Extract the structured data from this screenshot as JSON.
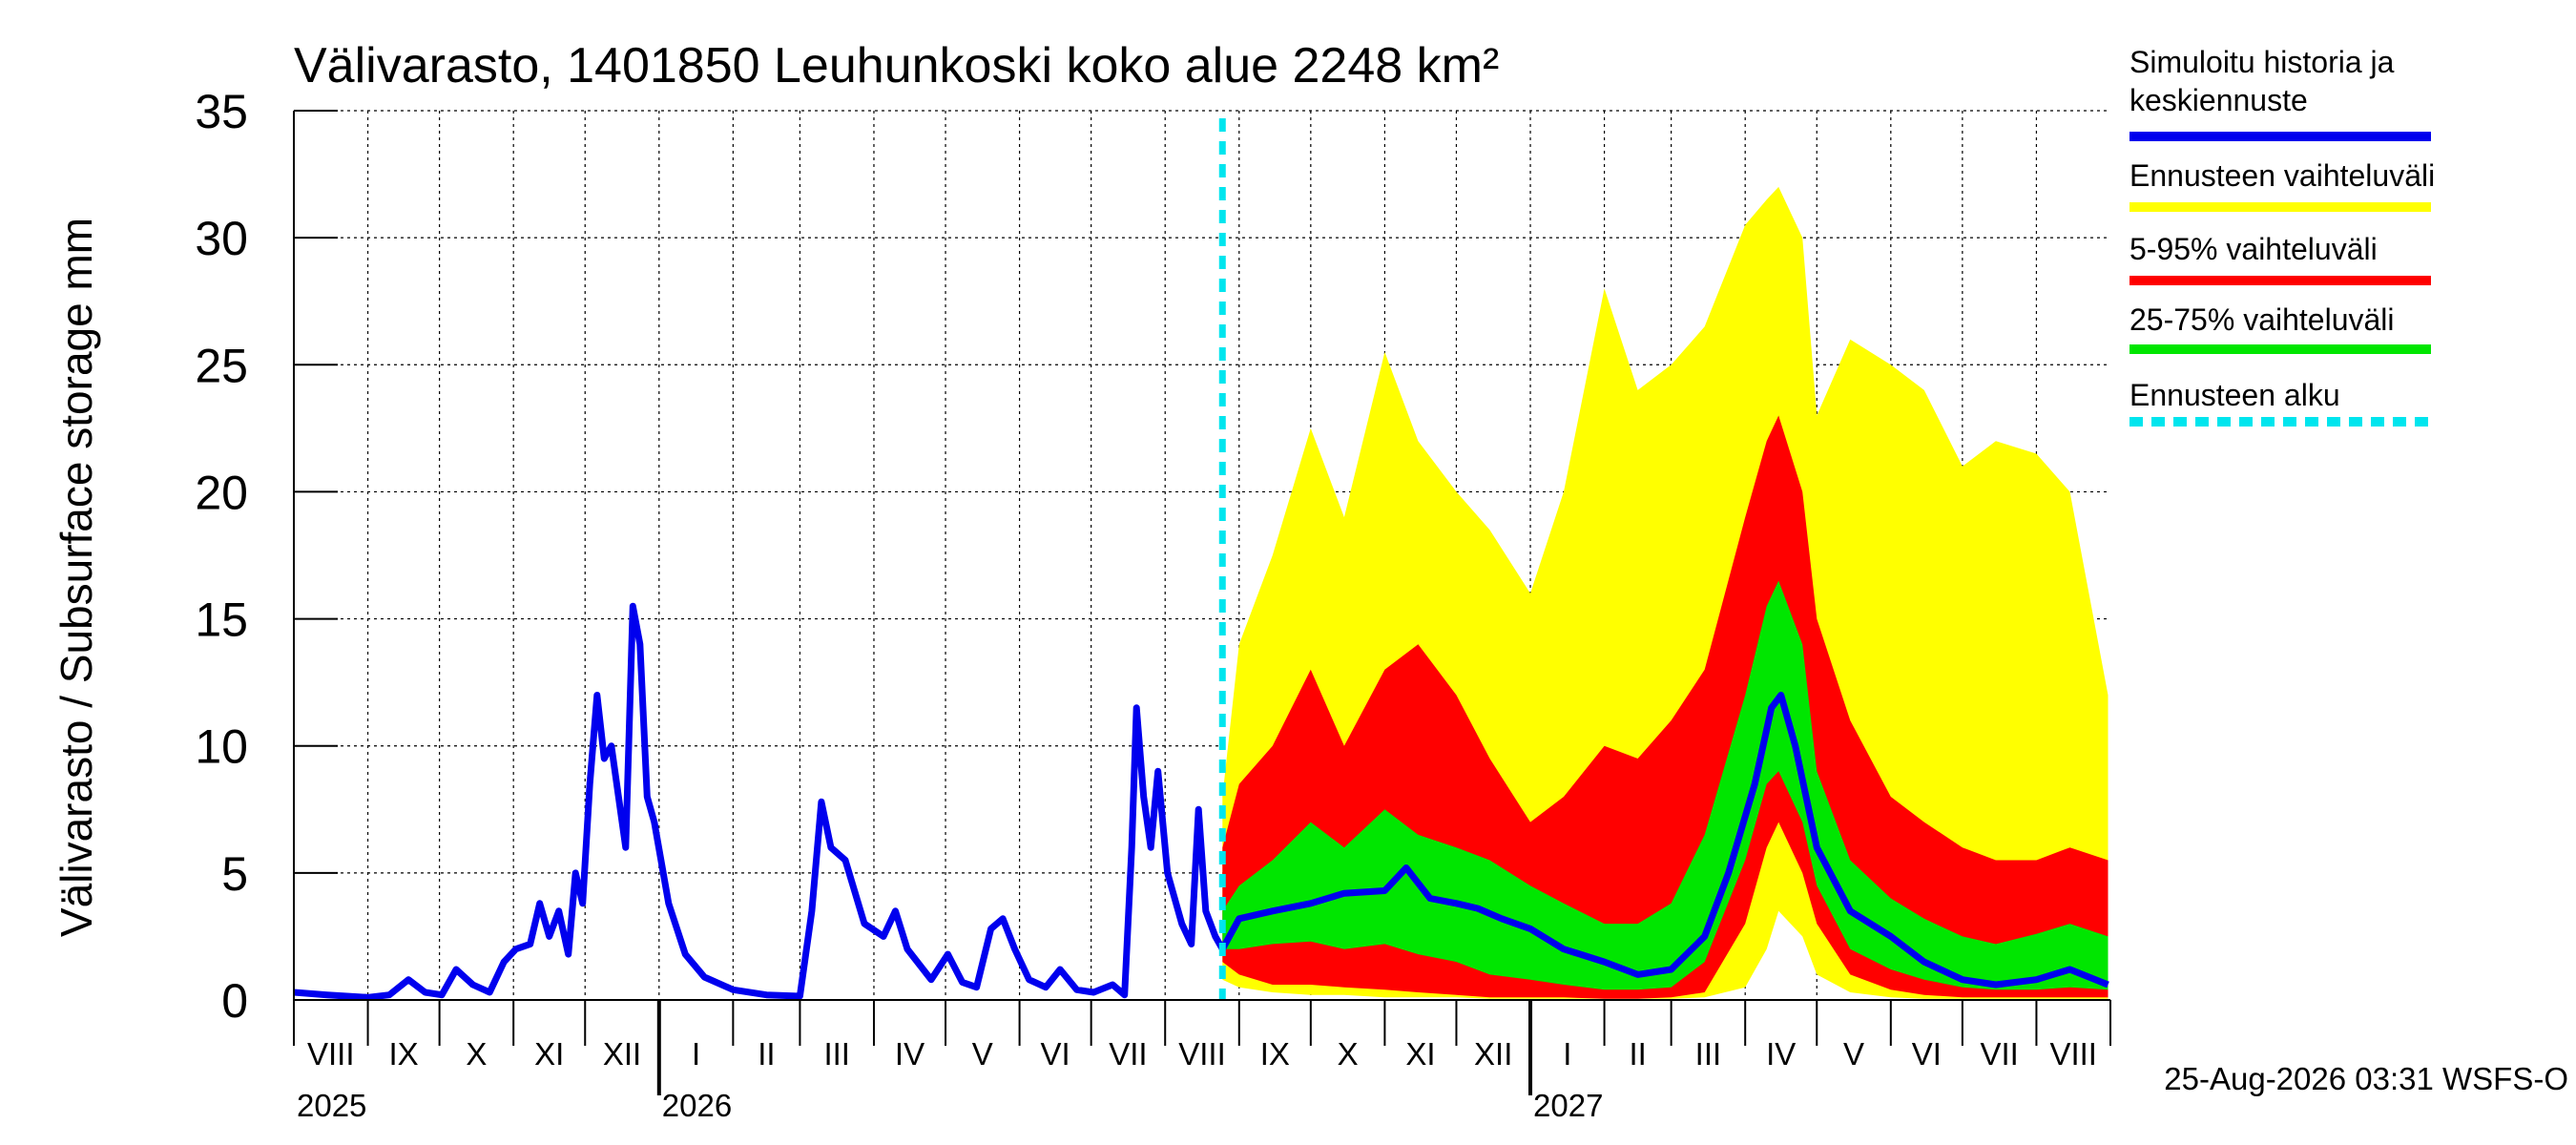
{
  "chart_data": {
    "type": "area",
    "title": "Välivarasto, 1401850 Leuhunkoski koko alue 2248 km²",
    "ylabel": "Välivarasto / Subsurface storage  mm",
    "xlabel": "",
    "ylim": [
      0,
      35
    ],
    "y_ticks": [
      "0",
      "5",
      "10",
      "15",
      "20",
      "25",
      "30",
      "35"
    ],
    "grid": true,
    "legend_position": "right",
    "x_range": [
      "2025-08-01",
      "2027-08-31"
    ],
    "forecast_start": "2026-08-25",
    "month_labels": [
      "VIII",
      "IX",
      "X",
      "XI",
      "XII",
      "I",
      "II",
      "III",
      "IV",
      "V",
      "VI",
      "VII",
      "VIII",
      "IX",
      "X",
      "XI",
      "XII",
      "I",
      "II",
      "III",
      "IV",
      "V",
      "VI",
      "VII",
      "VIII"
    ],
    "year_labels": [
      {
        "label": "2025",
        "date": "2025-08-01"
      },
      {
        "label": "2026",
        "date": "2026-01-01"
      },
      {
        "label": "2027",
        "date": "2027-01-01"
      }
    ],
    "legend": [
      {
        "label": "Simuloitu historia ja\nkeskiennuste",
        "color": "#0000ee",
        "style": "solid"
      },
      {
        "label": "Ennusteen vaihteluväli",
        "color": "#ffff00",
        "style": "solid"
      },
      {
        "label": "5-95% vaihteluväli",
        "color": "#ff0000",
        "style": "solid"
      },
      {
        "label": "25-75% vaihteluväli",
        "color": "#00e600",
        "style": "solid"
      },
      {
        "label": "Ennusteen alku",
        "color": "#00e5ee",
        "style": "dashed"
      }
    ],
    "series": [
      {
        "name": "Simuloitu historia ja keskiennuste",
        "color": "#0000ee",
        "points": [
          [
            "2025-08-01",
            0.3
          ],
          [
            "2025-08-15",
            0.2
          ],
          [
            "2025-09-01",
            0.1
          ],
          [
            "2025-09-10",
            0.2
          ],
          [
            "2025-09-18",
            0.8
          ],
          [
            "2025-09-25",
            0.3
          ],
          [
            "2025-10-02",
            0.2
          ],
          [
            "2025-10-08",
            1.2
          ],
          [
            "2025-10-15",
            0.6
          ],
          [
            "2025-10-22",
            0.3
          ],
          [
            "2025-10-28",
            1.5
          ],
          [
            "2025-11-02",
            2.0
          ],
          [
            "2025-11-08",
            2.2
          ],
          [
            "2025-11-12",
            3.8
          ],
          [
            "2025-11-16",
            2.5
          ],
          [
            "2025-11-20",
            3.5
          ],
          [
            "2025-11-24",
            1.8
          ],
          [
            "2025-11-27",
            5.0
          ],
          [
            "2025-11-30",
            3.8
          ],
          [
            "2025-12-03",
            8.5
          ],
          [
            "2025-12-06",
            12.0
          ],
          [
            "2025-12-09",
            9.5
          ],
          [
            "2025-12-12",
            10.0
          ],
          [
            "2025-12-15",
            8.0
          ],
          [
            "2025-12-18",
            6.0
          ],
          [
            "2025-12-21",
            15.5
          ],
          [
            "2025-12-24",
            14.0
          ],
          [
            "2025-12-27",
            8.0
          ],
          [
            "2025-12-30",
            7.0
          ],
          [
            "2026-01-05",
            3.8
          ],
          [
            "2026-01-12",
            1.8
          ],
          [
            "2026-01-20",
            0.9
          ],
          [
            "2026-02-01",
            0.4
          ],
          [
            "2026-02-15",
            0.2
          ],
          [
            "2026-03-01",
            0.15
          ],
          [
            "2026-03-06",
            3.5
          ],
          [
            "2026-03-10",
            7.8
          ],
          [
            "2026-03-14",
            6.0
          ],
          [
            "2026-03-20",
            5.5
          ],
          [
            "2026-03-28",
            3.0
          ],
          [
            "2026-04-05",
            2.5
          ],
          [
            "2026-04-10",
            3.5
          ],
          [
            "2026-04-15",
            2.0
          ],
          [
            "2026-04-25",
            0.8
          ],
          [
            "2026-05-02",
            1.8
          ],
          [
            "2026-05-08",
            0.7
          ],
          [
            "2026-05-14",
            0.5
          ],
          [
            "2026-05-20",
            2.8
          ],
          [
            "2026-05-25",
            3.2
          ],
          [
            "2026-05-30",
            2.0
          ],
          [
            "2026-06-05",
            0.8
          ],
          [
            "2026-06-12",
            0.5
          ],
          [
            "2026-06-18",
            1.2
          ],
          [
            "2026-06-25",
            0.4
          ],
          [
            "2026-07-02",
            0.3
          ],
          [
            "2026-07-10",
            0.6
          ],
          [
            "2026-07-15",
            0.2
          ],
          [
            "2026-07-18",
            6.0
          ],
          [
            "2026-07-20",
            11.5
          ],
          [
            "2026-07-23",
            8.0
          ],
          [
            "2026-07-26",
            6.0
          ],
          [
            "2026-07-29",
            9.0
          ],
          [
            "2026-08-02",
            5.0
          ],
          [
            "2026-08-08",
            3.0
          ],
          [
            "2026-08-12",
            2.2
          ],
          [
            "2026-08-15",
            7.5
          ],
          [
            "2026-08-18",
            3.5
          ],
          [
            "2026-08-22",
            2.5
          ],
          [
            "2026-08-25",
            2.0
          ],
          [
            "2026-09-01",
            3.2
          ],
          [
            "2026-09-15",
            3.5
          ],
          [
            "2026-10-01",
            3.8
          ],
          [
            "2026-10-15",
            4.2
          ],
          [
            "2026-11-01",
            4.3
          ],
          [
            "2026-11-10",
            5.2
          ],
          [
            "2026-11-20",
            4.0
          ],
          [
            "2026-12-01",
            3.8
          ],
          [
            "2026-12-10",
            3.6
          ],
          [
            "2026-12-20",
            3.2
          ],
          [
            "2027-01-01",
            2.8
          ],
          [
            "2027-01-15",
            2.0
          ],
          [
            "2027-02-01",
            1.5
          ],
          [
            "2027-02-15",
            1.0
          ],
          [
            "2027-03-01",
            1.2
          ],
          [
            "2027-03-15",
            2.5
          ],
          [
            "2027-03-25",
            5.0
          ],
          [
            "2027-04-05",
            8.5
          ],
          [
            "2027-04-12",
            11.5
          ],
          [
            "2027-04-16",
            12.0
          ],
          [
            "2027-04-22",
            10.0
          ],
          [
            "2027-05-01",
            6.0
          ],
          [
            "2027-05-15",
            3.5
          ],
          [
            "2027-06-01",
            2.5
          ],
          [
            "2027-06-15",
            1.5
          ],
          [
            "2027-07-01",
            0.8
          ],
          [
            "2027-07-15",
            0.6
          ],
          [
            "2027-08-01",
            0.8
          ],
          [
            "2027-08-15",
            1.2
          ],
          [
            "2027-08-31",
            0.6
          ]
        ]
      },
      {
        "name": "Ennusteen vaihteluväli",
        "color": "#ffff00",
        "band": [
          [
            "2026-08-25",
            0.8,
            8.0
          ],
          [
            "2026-09-01",
            0.5,
            14.0
          ],
          [
            "2026-09-15",
            0.3,
            17.5
          ],
          [
            "2026-10-01",
            0.2,
            22.5
          ],
          [
            "2026-10-15",
            0.2,
            19.0
          ],
          [
            "2026-11-01",
            0.1,
            25.5
          ],
          [
            "2026-11-15",
            0.1,
            22.0
          ],
          [
            "2026-12-01",
            0.1,
            20.0
          ],
          [
            "2026-12-15",
            0.05,
            18.5
          ],
          [
            "2027-01-01",
            0.05,
            16.0
          ],
          [
            "2027-01-15",
            0.05,
            20.0
          ],
          [
            "2027-02-01",
            0.05,
            28.0
          ],
          [
            "2027-02-15",
            0.05,
            24.0
          ],
          [
            "2027-03-01",
            0.05,
            25.0
          ],
          [
            "2027-03-15",
            0.1,
            26.5
          ],
          [
            "2027-04-01",
            0.5,
            30.5
          ],
          [
            "2027-04-10",
            2.0,
            31.5
          ],
          [
            "2027-04-15",
            3.5,
            32.0
          ],
          [
            "2027-04-25",
            2.5,
            30.0
          ],
          [
            "2027-05-01",
            1.0,
            23.0
          ],
          [
            "2027-05-15",
            0.3,
            26.0
          ],
          [
            "2027-06-01",
            0.1,
            25.0
          ],
          [
            "2027-06-15",
            0.05,
            24.0
          ],
          [
            "2027-07-01",
            0.05,
            21.0
          ],
          [
            "2027-07-15",
            0.05,
            22.0
          ],
          [
            "2027-08-01",
            0.05,
            21.5
          ],
          [
            "2027-08-15",
            0.05,
            20.0
          ],
          [
            "2027-08-31",
            0.05,
            12.0
          ]
        ]
      },
      {
        "name": "5-95% vaihteluväli",
        "color": "#ff0000",
        "band": [
          [
            "2026-08-25",
            1.5,
            6.0
          ],
          [
            "2026-09-01",
            1.0,
            8.5
          ],
          [
            "2026-09-15",
            0.6,
            10.0
          ],
          [
            "2026-10-01",
            0.6,
            13.0
          ],
          [
            "2026-10-15",
            0.5,
            10.0
          ],
          [
            "2026-11-01",
            0.4,
            13.0
          ],
          [
            "2026-11-15",
            0.3,
            14.0
          ],
          [
            "2026-12-01",
            0.2,
            12.0
          ],
          [
            "2026-12-15",
            0.1,
            9.5
          ],
          [
            "2027-01-01",
            0.1,
            7.0
          ],
          [
            "2027-01-15",
            0.1,
            8.0
          ],
          [
            "2027-02-01",
            0.05,
            10.0
          ],
          [
            "2027-02-15",
            0.05,
            9.5
          ],
          [
            "2027-03-01",
            0.1,
            11.0
          ],
          [
            "2027-03-15",
            0.3,
            13.0
          ],
          [
            "2027-04-01",
            3.0,
            19.0
          ],
          [
            "2027-04-10",
            6.0,
            22.0
          ],
          [
            "2027-04-15",
            7.0,
            23.0
          ],
          [
            "2027-04-25",
            5.0,
            20.0
          ],
          [
            "2027-05-01",
            3.0,
            15.0
          ],
          [
            "2027-05-15",
            1.0,
            11.0
          ],
          [
            "2027-06-01",
            0.4,
            8.0
          ],
          [
            "2027-06-15",
            0.2,
            7.0
          ],
          [
            "2027-07-01",
            0.1,
            6.0
          ],
          [
            "2027-07-15",
            0.1,
            5.5
          ],
          [
            "2027-08-01",
            0.1,
            5.5
          ],
          [
            "2027-08-15",
            0.1,
            6.0
          ],
          [
            "2027-08-31",
            0.1,
            5.5
          ]
        ]
      },
      {
        "name": "25-75% vaihteluväli",
        "color": "#00e600",
        "band": [
          [
            "2026-08-25",
            2.0,
            3.5
          ],
          [
            "2026-09-01",
            2.0,
            4.5
          ],
          [
            "2026-09-15",
            2.2,
            5.5
          ],
          [
            "2026-10-01",
            2.3,
            7.0
          ],
          [
            "2026-10-15",
            2.0,
            6.0
          ],
          [
            "2026-11-01",
            2.2,
            7.5
          ],
          [
            "2026-11-15",
            1.8,
            6.5
          ],
          [
            "2026-12-01",
            1.5,
            6.0
          ],
          [
            "2026-12-15",
            1.0,
            5.5
          ],
          [
            "2027-01-01",
            0.8,
            4.5
          ],
          [
            "2027-01-15",
            0.6,
            3.8
          ],
          [
            "2027-02-01",
            0.4,
            3.0
          ],
          [
            "2027-02-15",
            0.4,
            3.0
          ],
          [
            "2027-03-01",
            0.5,
            3.8
          ],
          [
            "2027-03-15",
            1.5,
            6.5
          ],
          [
            "2027-04-01",
            5.5,
            12.0
          ],
          [
            "2027-04-10",
            8.5,
            15.5
          ],
          [
            "2027-04-15",
            9.0,
            16.5
          ],
          [
            "2027-04-25",
            7.0,
            14.0
          ],
          [
            "2027-05-01",
            4.5,
            9.0
          ],
          [
            "2027-05-15",
            2.0,
            5.5
          ],
          [
            "2027-06-01",
            1.2,
            4.0
          ],
          [
            "2027-06-15",
            0.8,
            3.2
          ],
          [
            "2027-07-01",
            0.5,
            2.5
          ],
          [
            "2027-07-15",
            0.4,
            2.2
          ],
          [
            "2027-08-01",
            0.4,
            2.6
          ],
          [
            "2027-08-15",
            0.5,
            3.0
          ],
          [
            "2027-08-31",
            0.4,
            2.5
          ]
        ]
      }
    ]
  },
  "footer": {
    "timestamp": "25-Aug-2026 03:31 WSFS-O"
  }
}
